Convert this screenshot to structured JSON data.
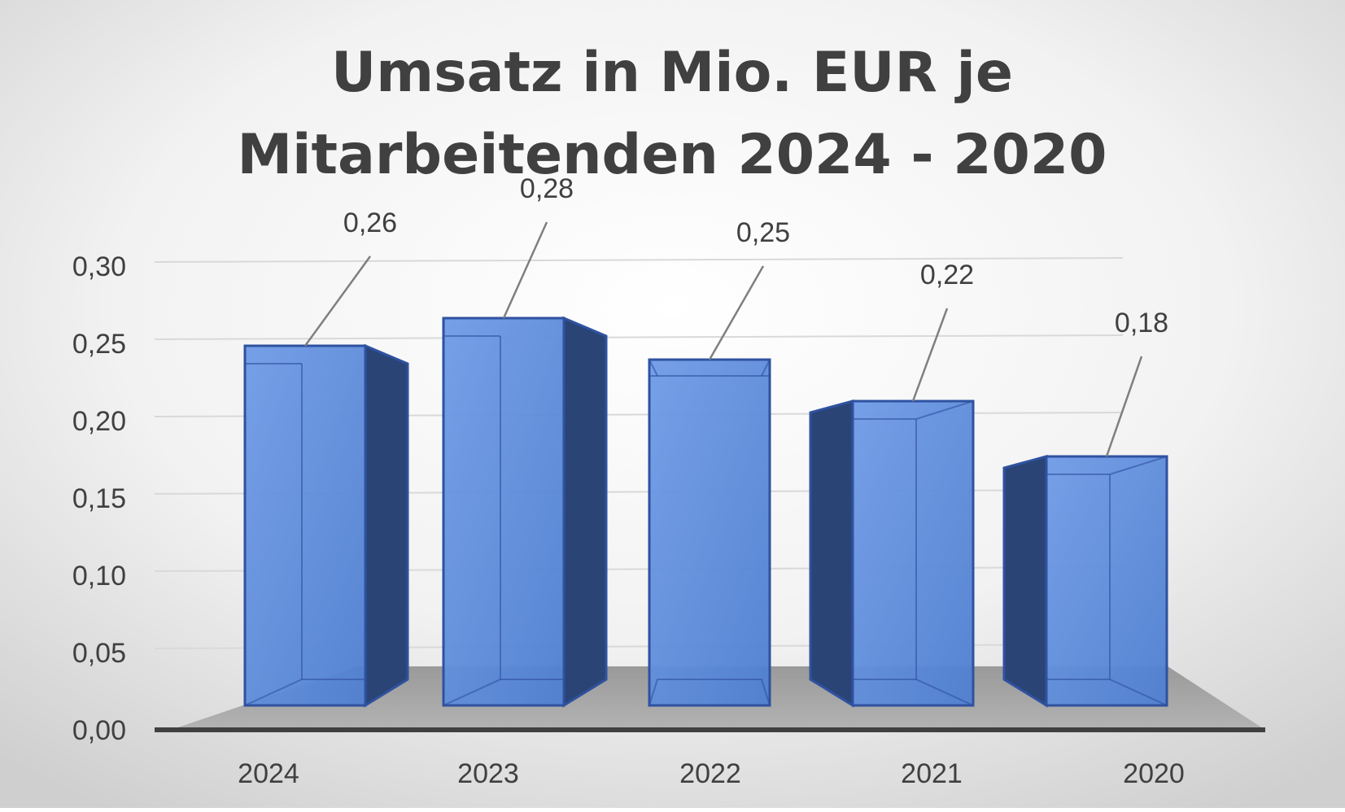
{
  "chart_data": {
    "type": "bar",
    "title_lines": [
      "Umsatz in Mio. EUR je",
      "Mitarbeitenden 2024 - 2020"
    ],
    "categories": [
      "2024",
      "2023",
      "2022",
      "2021",
      "2020"
    ],
    "values": [
      0.26,
      0.28,
      0.25,
      0.22,
      0.18
    ],
    "value_labels": [
      "0,26",
      "0,28",
      "0,25",
      "0,22",
      "0,18"
    ],
    "y_ticks": [
      "0,00",
      "0,05",
      "0,10",
      "0,15",
      "0,20",
      "0,25",
      "0,30"
    ],
    "y_tick_values": [
      0,
      0.05,
      0.1,
      0.15,
      0.2,
      0.25,
      0.3
    ],
    "ylim": [
      0,
      0.3
    ],
    "xlabel": "",
    "ylabel": "",
    "grid": true,
    "legend": "none",
    "style": "3d-column",
    "colors": {
      "bar_front": "#4f7fd0",
      "bar_front_light": "#6e9ae6",
      "bar_edge": "#2f52a0",
      "bar_side": "#2b4476",
      "floor": "#a6a6a6",
      "axis": "#404040",
      "gridline": "#d9d9d9",
      "text": "#404040",
      "leader": "#7f7f7f"
    }
  }
}
